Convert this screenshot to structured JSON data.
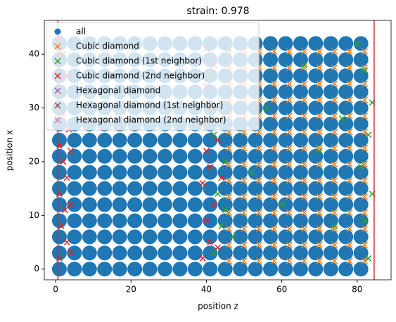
{
  "chart_data": {
    "type": "scatter",
    "title": "strain: 0.978",
    "xlabel": "position z",
    "ylabel": "position x",
    "xlim": [
      -3,
      89
    ],
    "ylim": [
      -2,
      46.3
    ],
    "xticks": [
      0,
      20,
      40,
      60,
      80
    ],
    "yticks": [
      0,
      10,
      20,
      30,
      40
    ],
    "vlines": [
      0.6,
      84.5
    ],
    "vline_color": "#d62728",
    "legend": "upper left",
    "series": [
      {
        "name": "all",
        "color": "#1f77b4",
        "marker": "o",
        "x": [
          1,
          5,
          9,
          13,
          17,
          21,
          25,
          29,
          33,
          37,
          41,
          45,
          49,
          53,
          57,
          61,
          65,
          69,
          73,
          77,
          81,
          1,
          5,
          9,
          13,
          17,
          21,
          25,
          29,
          33,
          37,
          41,
          45,
          49,
          53,
          57,
          61,
          65,
          69,
          73,
          77,
          81,
          1,
          5,
          9,
          13,
          17,
          21,
          25,
          29,
          33,
          37,
          41,
          45,
          49,
          53,
          57,
          61,
          65,
          69,
          73,
          77,
          81,
          1,
          5,
          9,
          13,
          17,
          21,
          25,
          29,
          33,
          37,
          41,
          45,
          49,
          53,
          57,
          61,
          65,
          69,
          73,
          77,
          81,
          1,
          5,
          9,
          13,
          17,
          21,
          25,
          29,
          33,
          37,
          41,
          45,
          49,
          53,
          57,
          61,
          65,
          69,
          73,
          77,
          81,
          1,
          5,
          9,
          13,
          17,
          21,
          25,
          29,
          33,
          37,
          41,
          45,
          49,
          53,
          57,
          61,
          65,
          69,
          73,
          77,
          81,
          1,
          5,
          9,
          13,
          17,
          21,
          25,
          29,
          33,
          37,
          41,
          45,
          49,
          53,
          57,
          61,
          65,
          69,
          73,
          77,
          81,
          1,
          5,
          9,
          13,
          17,
          21,
          25,
          29,
          33,
          37,
          41,
          45,
          49,
          53,
          57,
          61,
          65,
          69,
          73,
          77,
          81,
          1,
          5,
          9,
          13,
          17,
          21,
          25,
          29,
          33,
          37,
          41,
          45,
          49,
          53,
          57,
          61,
          65,
          69,
          73,
          77,
          81,
          1,
          5,
          9,
          13,
          17,
          21,
          25,
          29,
          33,
          37,
          41,
          45,
          49,
          53,
          57,
          61,
          65,
          69,
          73,
          77,
          81,
          1,
          5,
          9,
          13,
          17,
          21,
          25,
          29,
          33,
          37,
          41,
          45,
          49,
          53,
          57,
          61,
          65,
          69,
          73,
          77,
          81,
          1,
          5,
          9,
          13,
          17,
          21,
          25,
          29,
          33,
          37,
          41,
          45,
          49,
          53,
          57,
          61,
          65,
          69,
          73,
          77,
          81,
          1,
          5,
          9,
          13,
          17,
          21,
          25,
          29,
          33,
          37,
          41,
          45,
          49,
          53,
          57,
          61,
          65,
          69,
          73,
          77,
          81,
          1,
          5,
          9,
          13,
          17,
          21,
          25,
          29,
          33,
          37,
          41,
          45,
          49,
          53,
          57,
          61,
          65,
          69,
          73,
          77,
          81,
          1,
          5,
          9,
          13,
          17,
          21,
          25,
          29,
          33,
          37,
          41,
          45,
          49,
          53,
          57,
          61,
          65,
          69,
          73,
          77,
          81
        ],
        "y": [
          0,
          0,
          0,
          0,
          0,
          0,
          0,
          0,
          0,
          0,
          0,
          0,
          0,
          0,
          0,
          0,
          0,
          0,
          0,
          0,
          0,
          3,
          3,
          3,
          3,
          3,
          3,
          3,
          3,
          3,
          3,
          3,
          3,
          3,
          3,
          3,
          3,
          3,
          3,
          3,
          3,
          3,
          6,
          6,
          6,
          6,
          6,
          6,
          6,
          6,
          6,
          6,
          6,
          6,
          6,
          6,
          6,
          6,
          6,
          6,
          6,
          6,
          6,
          9,
          9,
          9,
          9,
          9,
          9,
          9,
          9,
          9,
          9,
          9,
          9,
          9,
          9,
          9,
          9,
          9,
          9,
          9,
          9,
          9,
          12,
          12,
          12,
          12,
          12,
          12,
          12,
          12,
          12,
          12,
          12,
          12,
          12,
          12,
          12,
          12,
          12,
          12,
          12,
          12,
          12,
          15,
          15,
          15,
          15,
          15,
          15,
          15,
          15,
          15,
          15,
          15,
          15,
          15,
          15,
          15,
          15,
          15,
          15,
          15,
          15,
          15,
          18,
          18,
          18,
          18,
          18,
          18,
          18,
          18,
          18,
          18,
          18,
          18,
          18,
          18,
          18,
          18,
          18,
          18,
          18,
          18,
          18,
          21,
          21,
          21,
          21,
          21,
          21,
          21,
          21,
          21,
          21,
          21,
          21,
          21,
          21,
          21,
          21,
          21,
          21,
          21,
          21,
          21,
          24,
          24,
          24,
          24,
          24,
          24,
          24,
          24,
          24,
          24,
          24,
          24,
          24,
          24,
          24,
          24,
          24,
          24,
          24,
          24,
          24,
          27,
          27,
          27,
          27,
          27,
          27,
          27,
          27,
          27,
          27,
          27,
          27,
          27,
          27,
          27,
          27,
          27,
          27,
          27,
          27,
          27,
          30,
          30,
          30,
          30,
          30,
          30,
          30,
          30,
          30,
          30,
          30,
          30,
          30,
          30,
          30,
          30,
          30,
          30,
          30,
          30,
          30,
          33,
          33,
          33,
          33,
          33,
          33,
          33,
          33,
          33,
          33,
          33,
          33,
          33,
          33,
          33,
          33,
          33,
          33,
          33,
          33,
          33,
          36,
          36,
          36,
          36,
          36,
          36,
          36,
          36,
          36,
          36,
          36,
          36,
          36,
          36,
          36,
          36,
          36,
          36,
          36,
          36,
          36,
          39,
          39,
          39,
          39,
          39,
          39,
          39,
          39,
          39,
          39,
          39,
          39,
          39,
          39,
          39,
          39,
          39,
          39,
          39,
          39,
          39,
          42,
          42,
          42,
          42,
          42,
          42,
          42,
          42,
          42,
          42,
          42,
          42,
          42,
          42,
          42,
          42,
          42,
          42,
          42,
          42,
          42
        ]
      },
      {
        "name": "Cubic diamond",
        "color": "#ff7f0e",
        "marker": "x",
        "x": [
          46,
          50,
          54,
          58,
          62,
          66,
          70,
          74,
          78,
          82,
          46,
          50,
          54,
          58,
          62,
          66,
          70,
          74,
          78,
          82,
          46,
          50,
          54,
          58,
          62,
          66,
          70,
          74,
          78,
          82,
          46,
          50,
          54,
          58,
          62,
          66,
          70,
          74,
          78,
          82,
          46,
          50,
          54,
          58,
          62,
          66,
          70,
          74,
          78,
          82,
          46,
          50,
          54,
          58,
          62,
          66,
          70,
          74,
          78,
          82,
          46,
          50,
          54,
          58,
          62,
          66,
          70,
          74,
          78,
          82,
          46,
          50,
          54,
          58,
          62,
          66,
          70,
          74,
          78,
          82,
          46,
          50,
          54,
          58,
          62,
          66,
          70,
          74,
          78,
          82,
          46,
          50,
          54,
          58,
          62,
          66,
          70,
          74,
          78,
          82,
          46,
          50,
          54,
          58,
          62,
          66,
          70,
          74,
          78,
          82,
          46,
          50,
          54,
          58,
          62,
          66,
          70,
          74,
          78,
          82,
          46,
          50,
          54,
          58,
          62,
          66,
          70,
          74,
          78,
          82,
          46,
          50,
          54,
          58,
          62,
          66,
          70,
          74,
          78,
          82
        ],
        "y": [
          1.5,
          1.5,
          1.5,
          1.5,
          1.5,
          1.5,
          1.5,
          1.5,
          1.5,
          1.5,
          4.5,
          4.5,
          4.5,
          4.5,
          4.5,
          4.5,
          4.5,
          4.5,
          4.5,
          4.5,
          7.5,
          7.5,
          7.5,
          7.5,
          7.5,
          7.5,
          7.5,
          7.5,
          7.5,
          7.5,
          10.5,
          10.5,
          10.5,
          10.5,
          10.5,
          10.5,
          10.5,
          10.5,
          10.5,
          10.5,
          13.5,
          13.5,
          13.5,
          13.5,
          13.5,
          13.5,
          13.5,
          13.5,
          13.5,
          13.5,
          16.5,
          16.5,
          16.5,
          16.5,
          16.5,
          16.5,
          16.5,
          16.5,
          16.5,
          16.5,
          19.5,
          19.5,
          19.5,
          19.5,
          19.5,
          19.5,
          19.5,
          19.5,
          19.5,
          19.5,
          22.5,
          22.5,
          22.5,
          22.5,
          22.5,
          22.5,
          22.5,
          22.5,
          22.5,
          22.5,
          25.5,
          25.5,
          25.5,
          25.5,
          25.5,
          25.5,
          25.5,
          25.5,
          25.5,
          25.5,
          28.5,
          28.5,
          28.5,
          28.5,
          28.5,
          28.5,
          28.5,
          28.5,
          28.5,
          28.5,
          31.5,
          31.5,
          31.5,
          31.5,
          31.5,
          31.5,
          31.5,
          31.5,
          31.5,
          31.5,
          34.5,
          34.5,
          34.5,
          34.5,
          34.5,
          34.5,
          34.5,
          34.5,
          34.5,
          34.5,
          37.5,
          37.5,
          37.5,
          37.5,
          37.5,
          37.5,
          37.5,
          37.5,
          37.5,
          37.5,
          40.5,
          40.5,
          40.5,
          40.5,
          40.5,
          40.5,
          40.5,
          40.5,
          40.5,
          40.5
        ]
      },
      {
        "name": "Cubic diamond (1st neighbor)",
        "color": "#2ca02c",
        "marker": "x",
        "x": [
          42,
          44,
          43,
          45,
          42,
          44,
          41,
          46,
          47,
          45,
          83,
          82,
          84,
          81,
          83,
          84,
          82,
          80,
          60,
          70,
          56,
          66,
          74,
          52,
          76
        ],
        "y": [
          3,
          8,
          14,
          20,
          25,
          31,
          36,
          41,
          6,
          11,
          2,
          9,
          14,
          19,
          25,
          31,
          37,
          42,
          12,
          22,
          30,
          38,
          8,
          18,
          28
        ]
      },
      {
        "name": "Cubic diamond (2nd neighbor)",
        "color": "#d62728",
        "marker": "x",
        "x": [
          1,
          3,
          1.5,
          2.5,
          1,
          3,
          2,
          1,
          3.5,
          2,
          1,
          3,
          2,
          1,
          4,
          4,
          4,
          39,
          41,
          40,
          42,
          39,
          41,
          40,
          43,
          39,
          41,
          40,
          42,
          40,
          44,
          43
        ],
        "y": [
          2,
          5,
          8,
          11,
          14,
          17,
          20,
          23,
          26,
          29,
          33,
          36,
          40,
          43,
          3,
          12,
          22,
          2,
          5,
          9,
          12,
          16,
          19,
          22,
          24,
          27,
          30,
          34,
          38,
          41,
          17,
          4
        ]
      },
      {
        "name": "Hexagonal diamond",
        "color": "#9467bd",
        "marker": "x",
        "x": [],
        "y": []
      },
      {
        "name": "Hexagonal diamond (1st neighbor)",
        "color": "#8c564b",
        "marker": "x",
        "x": [],
        "y": []
      },
      {
        "name": "Hexagonal diamond (2nd neighbor)",
        "color": "#e377c2",
        "marker": "x",
        "x": [],
        "y": []
      }
    ]
  }
}
